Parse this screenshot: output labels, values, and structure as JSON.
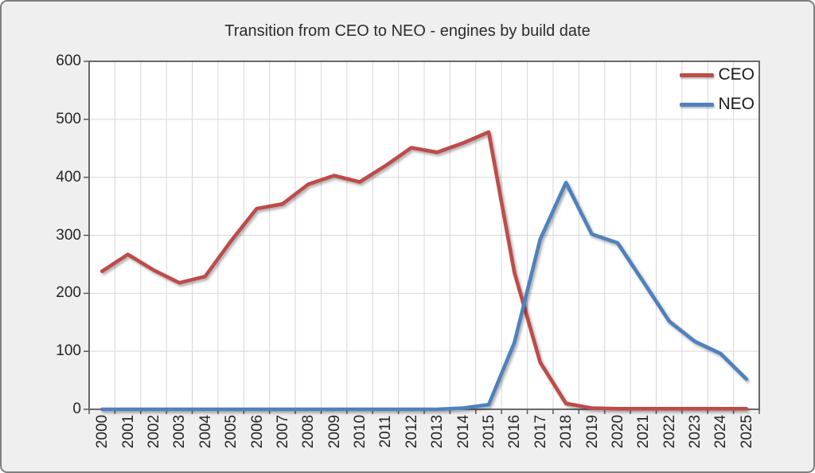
{
  "chart_data": {
    "type": "line",
    "title": "Transition from CEO to NEO - engines by build date",
    "xlabel": "",
    "ylabel": "",
    "categories": [
      "2000",
      "2001",
      "2002",
      "2003",
      "2004",
      "2005",
      "2006",
      "2007",
      "2008",
      "2009",
      "2010",
      "2011",
      "2012",
      "2013",
      "2014",
      "2015",
      "2016",
      "2017",
      "2018",
      "2019",
      "2020",
      "2021",
      "2022",
      "2023",
      "2024",
      "2025"
    ],
    "series": [
      {
        "name": "CEO",
        "color": "#be4b48",
        "values": [
          238,
          267,
          240,
          218,
          229,
          290,
          346,
          354,
          388,
          403,
          392,
          420,
          451,
          443,
          459,
          478,
          236,
          81,
          10,
          2,
          1,
          1,
          1,
          1,
          1,
          1
        ]
      },
      {
        "name": "NEO",
        "color": "#4f81bd",
        "values": [
          0,
          0,
          0,
          0,
          0,
          0,
          0,
          0,
          0,
          0,
          0,
          0,
          0,
          0,
          2,
          8,
          115,
          293,
          391,
          302,
          287,
          220,
          152,
          117,
          96,
          52
        ]
      }
    ],
    "ylim": [
      0,
      600
    ],
    "yticks": [
      "0",
      "100",
      "200",
      "300",
      "400",
      "500",
      "600"
    ],
    "grid": true,
    "legend_position": "top-right"
  },
  "styles": {
    "chart_bg": "#f0efef",
    "plot_bg": "#ffffff",
    "gridline": "#d8d8dc",
    "axis": "#5a5a5a",
    "text": "#262626"
  }
}
